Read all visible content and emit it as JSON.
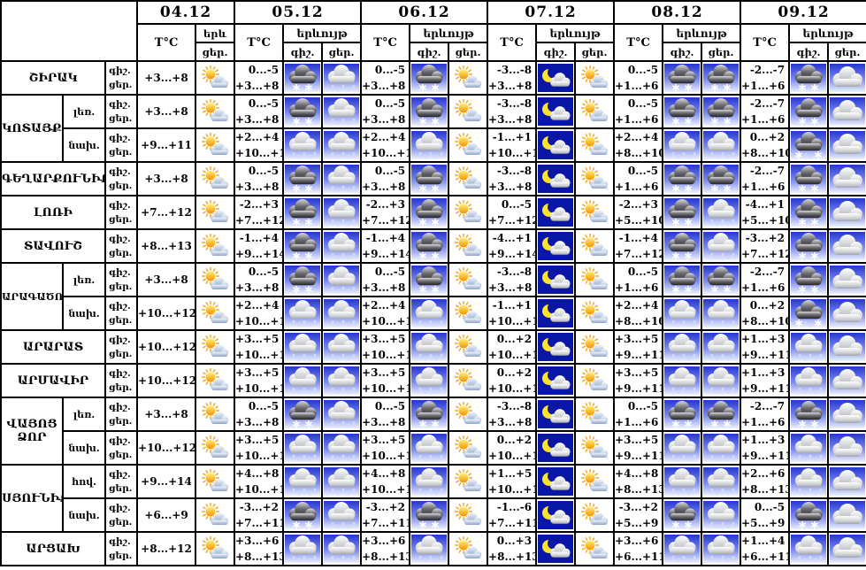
{
  "header": {
    "dates": [
      "04.12",
      "05.12",
      "06.12",
      "07.12",
      "08.12",
      "09.12"
    ],
    "temp_label": "T°C",
    "phenom_label": "երևույթ",
    "night_label": "գիշ.",
    "day_label": "ցեր.",
    "d04_phenom_top": "երև",
    "d04_phenom_bottom": "ցեր."
  },
  "icons": {
    "partly-sunny": "☀☁",
    "rain": "☁💧",
    "snow": "☁❄",
    "sleet": "☁❄💧",
    "moon-cloud": "☾☁",
    "cloudy": "☁"
  },
  "colors": {
    "border": "#000000",
    "sky_top": "#2636cf",
    "sky_bottom": "#eef1fb",
    "night_bg": "#0a16a6",
    "moon_yellow": "#ffe22a",
    "sun_orange": "#f59300",
    "dark_cloud": "#232327",
    "white_cloud": "#ffffff"
  },
  "rows": [
    {
      "region": "ՇԻՐԱԿ",
      "region_rowspan": 1,
      "sub": null,
      "d04": {
        "day_temp": "+3...+8",
        "day_icon": "partly-sunny"
      },
      "d05": {
        "night_temp": "0...-5",
        "day_temp": "+3...+8",
        "night_icon": "snow",
        "day_icon": "rain"
      },
      "d06": {
        "night_temp": "0...-5",
        "day_temp": "+3...+8",
        "night_icon": "snow",
        "day_icon": "partly-sunny"
      },
      "d07": {
        "night_temp": "-3...-8",
        "day_temp": "+3...+8",
        "night_icon": "moon-cloud",
        "day_icon": "partly-sunny"
      },
      "d08": {
        "night_temp": "0...-5",
        "day_temp": "+1...+6",
        "night_icon": "snow",
        "day_icon": "snow"
      },
      "d09": {
        "night_temp": "-2...-7",
        "day_temp": "+1...+6",
        "night_icon": "snow",
        "day_icon": "cloudy"
      }
    },
    {
      "region": "ԿՈՏԱՅՔ",
      "region_rowspan": 2,
      "sub": "լեռ.",
      "d04": {
        "day_temp": "+3...+8",
        "day_icon": "partly-sunny"
      },
      "d05": {
        "night_temp": "0...-5",
        "day_temp": "+3...+8",
        "night_icon": "snow",
        "day_icon": "rain"
      },
      "d06": {
        "night_temp": "0...-5",
        "day_temp": "+3...+8",
        "night_icon": "snow",
        "day_icon": "partly-sunny"
      },
      "d07": {
        "night_temp": "-3...-8",
        "day_temp": "+3...+8",
        "night_icon": "moon-cloud",
        "day_icon": "partly-sunny"
      },
      "d08": {
        "night_temp": "0...-5",
        "day_temp": "+1...+6",
        "night_icon": "snow",
        "day_icon": "snow"
      },
      "d09": {
        "night_temp": "-2...-7",
        "day_temp": "+1...+6",
        "night_icon": "snow",
        "day_icon": "cloudy"
      }
    },
    {
      "region": null,
      "sub": "նախ.",
      "d04": {
        "day_temp": "+9...+11",
        "day_icon": "partly-sunny"
      },
      "d05": {
        "night_temp": "+2...+4",
        "day_temp": "+10...+12",
        "night_icon": "rain",
        "day_icon": "rain"
      },
      "d06": {
        "night_temp": "+2...+4",
        "day_temp": "+10...+12",
        "night_icon": "rain",
        "day_icon": "partly-sunny"
      },
      "d07": {
        "night_temp": "-1...+1",
        "day_temp": "+10...+12",
        "night_icon": "moon-cloud",
        "day_icon": "partly-sunny"
      },
      "d08": {
        "night_temp": "+2...+4",
        "day_temp": "+8...+10",
        "night_icon": "rain",
        "day_icon": "rain"
      },
      "d09": {
        "night_temp": "0...+2",
        "day_temp": "+8...+10",
        "night_icon": "sleet",
        "day_icon": "cloudy"
      }
    },
    {
      "region": "ԳԵՂԱՐՔՈՒՆԻՔ",
      "region_rowspan": 1,
      "sub": null,
      "d04": {
        "day_temp": "+3...+8",
        "day_icon": "partly-sunny"
      },
      "d05": {
        "night_temp": "0...-5",
        "day_temp": "+3...+8",
        "night_icon": "snow",
        "day_icon": "rain"
      },
      "d06": {
        "night_temp": "0...-5",
        "day_temp": "+3...+8",
        "night_icon": "snow",
        "day_icon": "partly-sunny"
      },
      "d07": {
        "night_temp": "-3...-8",
        "day_temp": "+3...+8",
        "night_icon": "moon-cloud",
        "day_icon": "partly-sunny"
      },
      "d08": {
        "night_temp": "0...-5",
        "day_temp": "+1...+6",
        "night_icon": "snow",
        "day_icon": "snow"
      },
      "d09": {
        "night_temp": "-2...-7",
        "day_temp": "+1...+6",
        "night_icon": "snow",
        "day_icon": "cloudy"
      }
    },
    {
      "region": "ԼՈՌԻ",
      "region_rowspan": 1,
      "sub": null,
      "d04": {
        "day_temp": "+7...+12",
        "day_icon": "partly-sunny"
      },
      "d05": {
        "night_temp": "-2...+3",
        "day_temp": "+7...+12",
        "night_icon": "snow",
        "day_icon": "rain"
      },
      "d06": {
        "night_temp": "-2...+3",
        "day_temp": "+7...+12",
        "night_icon": "snow",
        "day_icon": "partly-sunny"
      },
      "d07": {
        "night_temp": "0...-5",
        "day_temp": "+7...+12",
        "night_icon": "moon-cloud",
        "day_icon": "partly-sunny"
      },
      "d08": {
        "night_temp": "-2...+3",
        "day_temp": "+5...+10",
        "night_icon": "snow",
        "day_icon": "rain"
      },
      "d09": {
        "night_temp": "-4...+1",
        "day_temp": "+5...+10",
        "night_icon": "snow",
        "day_icon": "cloudy"
      }
    },
    {
      "region": "ՏԱՎՈՒՇ",
      "region_rowspan": 1,
      "sub": null,
      "d04": {
        "day_temp": "+8...+13",
        "day_icon": "partly-sunny"
      },
      "d05": {
        "night_temp": "-1...+4",
        "day_temp": "+9...+14",
        "night_icon": "snow",
        "day_icon": "rain"
      },
      "d06": {
        "night_temp": "-1...+4",
        "day_temp": "+9...+14",
        "night_icon": "snow",
        "day_icon": "partly-sunny"
      },
      "d07": {
        "night_temp": "-4...+1",
        "day_temp": "+9...+14",
        "night_icon": "moon-cloud",
        "day_icon": "partly-sunny"
      },
      "d08": {
        "night_temp": "-1...+4",
        "day_temp": "+7...+12",
        "night_icon": "snow",
        "day_icon": "rain"
      },
      "d09": {
        "night_temp": "-3...+2",
        "day_temp": "+7...+12",
        "night_icon": "snow",
        "day_icon": "cloudy"
      }
    },
    {
      "region": "ԱՐԱԳԱԾՈՏՆ",
      "region_rowspan": 2,
      "sub": "լեռ.",
      "d04": {
        "day_temp": "+3...+8",
        "day_icon": "partly-sunny"
      },
      "d05": {
        "night_temp": "0...-5",
        "day_temp": "+3...+8",
        "night_icon": "snow",
        "day_icon": "rain"
      },
      "d06": {
        "night_temp": "0...-5",
        "day_temp": "+3...+8",
        "night_icon": "snow",
        "day_icon": "partly-sunny"
      },
      "d07": {
        "night_temp": "-3...-8",
        "day_temp": "+3...+8",
        "night_icon": "moon-cloud",
        "day_icon": "partly-sunny"
      },
      "d08": {
        "night_temp": "0...-5",
        "day_temp": "+1...+6",
        "night_icon": "snow",
        "day_icon": "snow"
      },
      "d09": {
        "night_temp": "-2...-7",
        "day_temp": "+1...+6",
        "night_icon": "snow",
        "day_icon": "cloudy"
      }
    },
    {
      "region": null,
      "sub": "նախ.",
      "d04": {
        "day_temp": "+10...+12",
        "day_icon": "partly-sunny"
      },
      "d05": {
        "night_temp": "+2...+4",
        "day_temp": "+10...+12",
        "night_icon": "rain",
        "day_icon": "rain"
      },
      "d06": {
        "night_temp": "+2...+4",
        "day_temp": "+10...+12",
        "night_icon": "rain",
        "day_icon": "partly-sunny"
      },
      "d07": {
        "night_temp": "-1...+1",
        "day_temp": "+10...+12",
        "night_icon": "moon-cloud",
        "day_icon": "partly-sunny"
      },
      "d08": {
        "night_temp": "+2...+4",
        "day_temp": "+8...+10",
        "night_icon": "rain",
        "day_icon": "rain"
      },
      "d09": {
        "night_temp": "0...+2",
        "day_temp": "+8...+10",
        "night_icon": "sleet",
        "day_icon": "cloudy"
      }
    },
    {
      "region": "ԱՐԱՐԱՏ",
      "region_rowspan": 1,
      "sub": null,
      "d04": {
        "day_temp": "+10...+12",
        "day_icon": "partly-sunny"
      },
      "d05": {
        "night_temp": "+3...+5",
        "day_temp": "+10...+12",
        "night_icon": "rain",
        "day_icon": "rain"
      },
      "d06": {
        "night_temp": "+3...+5",
        "day_temp": "+10...+12",
        "night_icon": "rain",
        "day_icon": "partly-sunny"
      },
      "d07": {
        "night_temp": "0...+2",
        "day_temp": "+10...+12",
        "night_icon": "moon-cloud",
        "day_icon": "partly-sunny"
      },
      "d08": {
        "night_temp": "+3...+5",
        "day_temp": "+9...+11",
        "night_icon": "rain",
        "day_icon": "rain"
      },
      "d09": {
        "night_temp": "+1...+3",
        "day_temp": "+9...+11",
        "night_icon": "rain",
        "day_icon": "cloudy"
      }
    },
    {
      "region": "ԱՐՄԱՎԻՐ",
      "region_rowspan": 1,
      "sub": null,
      "d04": {
        "day_temp": "+10...+12",
        "day_icon": "partly-sunny"
      },
      "d05": {
        "night_temp": "+3...+5",
        "day_temp": "+10...+12",
        "night_icon": "rain",
        "day_icon": "rain"
      },
      "d06": {
        "night_temp": "+3...+5",
        "day_temp": "+10...+12",
        "night_icon": "rain",
        "day_icon": "partly-sunny"
      },
      "d07": {
        "night_temp": "0...+2",
        "day_temp": "+10...+12",
        "night_icon": "moon-cloud",
        "day_icon": "partly-sunny"
      },
      "d08": {
        "night_temp": "+3...+5",
        "day_temp": "+9...+11",
        "night_icon": "rain",
        "day_icon": "rain"
      },
      "d09": {
        "night_temp": "+1...+3",
        "day_temp": "+9...+11",
        "night_icon": "rain",
        "day_icon": "cloudy"
      }
    },
    {
      "region": "ՎԱՅՈՑ ՁՈՐ",
      "region_rowspan": 2,
      "sub": "լեռ.",
      "d04": {
        "day_temp": "+3...+8",
        "day_icon": "partly-sunny"
      },
      "d05": {
        "night_temp": "0...-5",
        "day_temp": "+3...+8",
        "night_icon": "snow",
        "day_icon": "rain"
      },
      "d06": {
        "night_temp": "0...-5",
        "day_temp": "+3...+8",
        "night_icon": "snow",
        "day_icon": "partly-sunny"
      },
      "d07": {
        "night_temp": "-3...-8",
        "day_temp": "+3...+8",
        "night_icon": "moon-cloud",
        "day_icon": "partly-sunny"
      },
      "d08": {
        "night_temp": "0...-5",
        "day_temp": "+1...+6",
        "night_icon": "snow",
        "day_icon": "snow"
      },
      "d09": {
        "night_temp": "-2...-7",
        "day_temp": "+1...+6",
        "night_icon": "snow",
        "day_icon": "cloudy"
      }
    },
    {
      "region": null,
      "sub": "նախ.",
      "d04": {
        "day_temp": "+10...+12",
        "day_icon": "partly-sunny"
      },
      "d05": {
        "night_temp": "+3...+5",
        "day_temp": "+10...+12",
        "night_icon": "rain",
        "day_icon": "rain"
      },
      "d06": {
        "night_temp": "+3...+5",
        "day_temp": "+10...+12",
        "night_icon": "rain",
        "day_icon": "partly-sunny"
      },
      "d07": {
        "night_temp": "0...+2",
        "day_temp": "+10...+12",
        "night_icon": "moon-cloud",
        "day_icon": "partly-sunny"
      },
      "d08": {
        "night_temp": "+3...+5",
        "day_temp": "+9...+11",
        "night_icon": "rain",
        "day_icon": "rain"
      },
      "d09": {
        "night_temp": "+1...+3",
        "day_temp": "+9...+11",
        "night_icon": "rain",
        "day_icon": "cloudy"
      }
    },
    {
      "region": "ՍՅՈՒՆԻՔ",
      "region_rowspan": 2,
      "sub": "հով.",
      "d04": {
        "day_temp": "+9...+14",
        "day_icon": "partly-sunny"
      },
      "d05": {
        "night_temp": "+4...+8",
        "day_temp": "+10...+15",
        "night_icon": "rain",
        "day_icon": "rain"
      },
      "d06": {
        "night_temp": "+4...+8",
        "day_temp": "+10...+15",
        "night_icon": "rain",
        "day_icon": "partly-sunny"
      },
      "d07": {
        "night_temp": "+1...+5",
        "day_temp": "+10...+15",
        "night_icon": "moon-cloud",
        "day_icon": "partly-sunny"
      },
      "d08": {
        "night_temp": "+4...+8",
        "day_temp": "+8...+13",
        "night_icon": "rain",
        "day_icon": "rain"
      },
      "d09": {
        "night_temp": "+2...+6",
        "day_temp": "+8...+13",
        "night_icon": "rain",
        "day_icon": "cloudy"
      }
    },
    {
      "region": null,
      "sub": "նախ.",
      "d04": {
        "day_temp": "+6...+9",
        "day_icon": "partly-sunny"
      },
      "d05": {
        "night_temp": "-3...+2",
        "day_temp": "+7...+11",
        "night_icon": "snow",
        "day_icon": "rain"
      },
      "d06": {
        "night_temp": "-3...+2",
        "day_temp": "+7...+11",
        "night_icon": "snow",
        "day_icon": "partly-sunny"
      },
      "d07": {
        "night_temp": "-1...-6",
        "day_temp": "+7...+11",
        "night_icon": "moon-cloud",
        "day_icon": "partly-sunny"
      },
      "d08": {
        "night_temp": "-3...+2",
        "day_temp": "+5...+9",
        "night_icon": "snow",
        "day_icon": "rain"
      },
      "d09": {
        "night_temp": "0...-5",
        "day_temp": "+5...+9",
        "night_icon": "snow",
        "day_icon": "cloudy"
      }
    },
    {
      "region": "ԱՐՑԱԽ",
      "region_rowspan": 1,
      "sub": null,
      "d04": {
        "day_temp": "+8...+12",
        "day_icon": "partly-sunny"
      },
      "d05": {
        "night_temp": "+3...+6",
        "day_temp": "+8...+13",
        "night_icon": "rain",
        "day_icon": "rain"
      },
      "d06": {
        "night_temp": "+3...+6",
        "day_temp": "+8...+13",
        "night_icon": "rain",
        "day_icon": "partly-sunny"
      },
      "d07": {
        "night_temp": "0...+3",
        "day_temp": "+8...+13",
        "night_icon": "moon-cloud",
        "day_icon": "partly-sunny"
      },
      "d08": {
        "night_temp": "+3...+6",
        "day_temp": "+6...+11",
        "night_icon": "rain",
        "day_icon": "rain"
      },
      "d09": {
        "night_temp": "+1...+4",
        "day_temp": "+6...+11",
        "night_icon": "rain",
        "day_icon": "cloudy"
      }
    }
  ]
}
